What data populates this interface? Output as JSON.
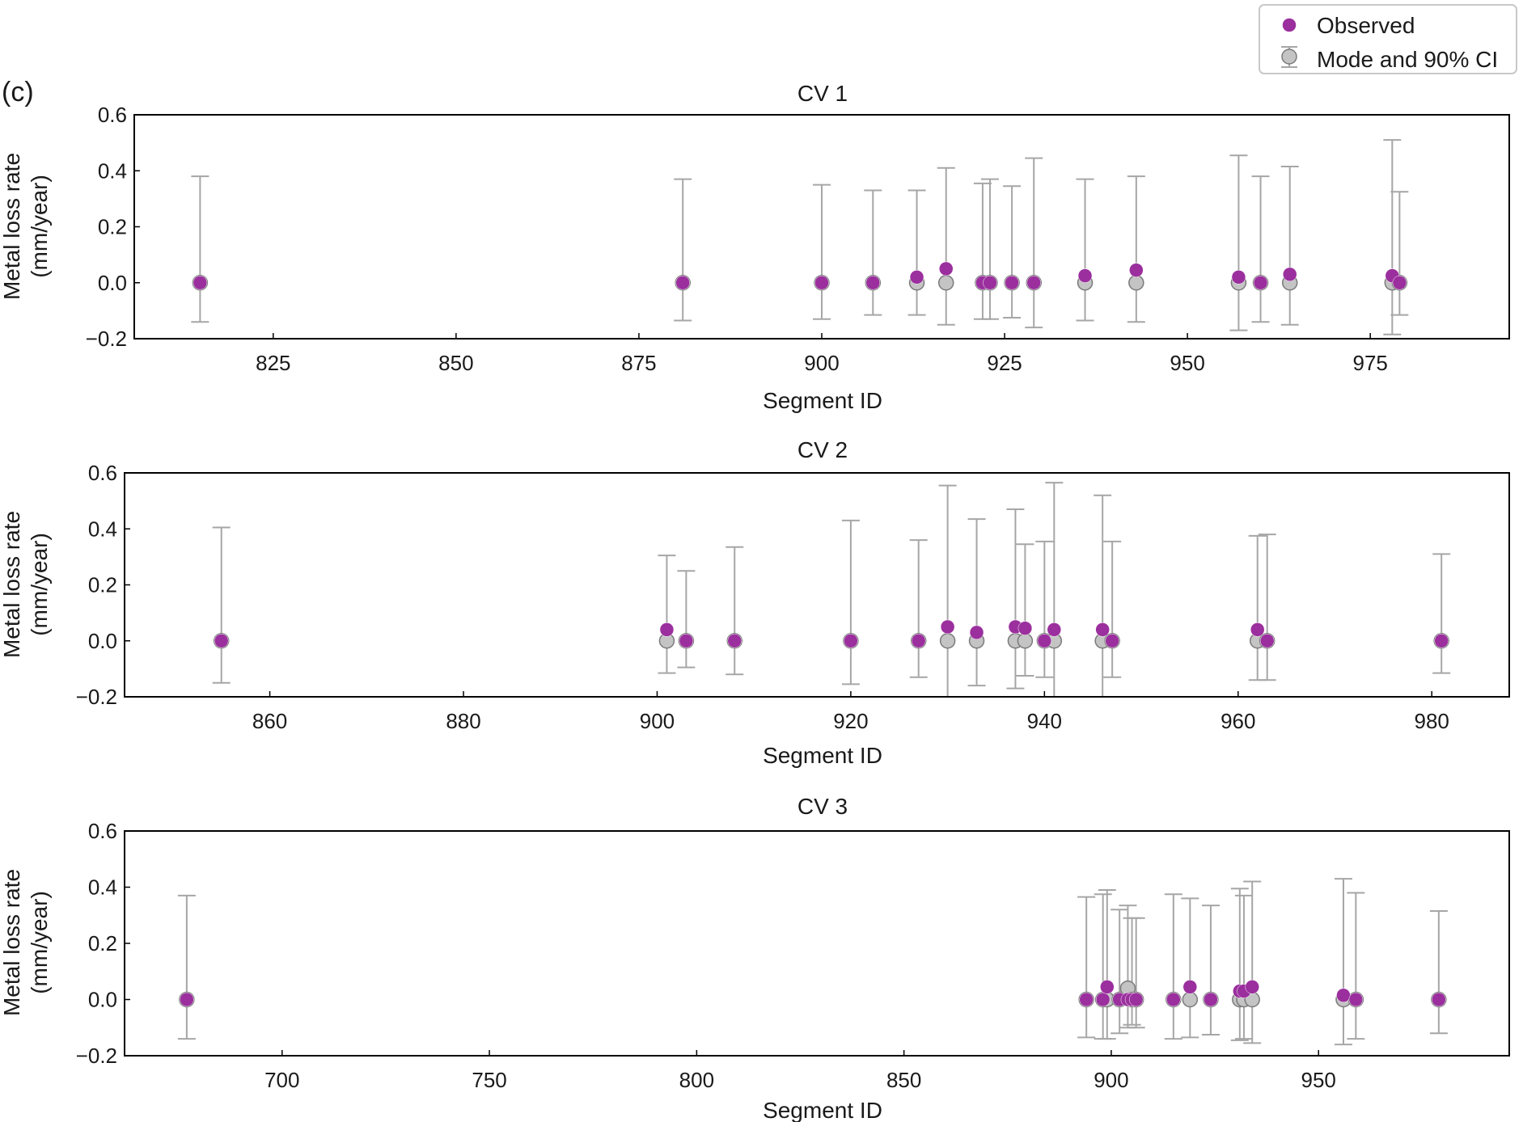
{
  "panel_label": "(c)",
  "legend": {
    "observed_label": "Observed",
    "mode_label": "Mode and 90% CI",
    "observed_color": "#9b2f9e",
    "mode_color": "#c4c4c4",
    "errorbar_color": "#a6a6a6"
  },
  "chart_data": [
    {
      "type": "scatter",
      "title": "CV 1",
      "xlabel": "Segment ID",
      "ylabel_line1": "Metal loss rate",
      "ylabel_line2": "(mm/year)",
      "xlim": [
        806,
        994
      ],
      "ylim": [
        -0.2,
        0.6
      ],
      "xticks": [
        825,
        850,
        875,
        900,
        925,
        950,
        975
      ],
      "yticks": [
        -0.2,
        0.0,
        0.2,
        0.4,
        0.6
      ],
      "ytick_labels": [
        "−0.2",
        "0.0",
        "0.2",
        "0.4",
        "0.6"
      ],
      "points": [
        {
          "x": 815,
          "mode": 0.0,
          "lo": -0.14,
          "hi": 0.38,
          "obs": 0.0
        },
        {
          "x": 881,
          "mode": 0.0,
          "lo": -0.135,
          "hi": 0.37,
          "obs": 0.0
        },
        {
          "x": 900,
          "mode": 0.0,
          "lo": -0.13,
          "hi": 0.35,
          "obs": 0.0
        },
        {
          "x": 907,
          "mode": 0.0,
          "lo": -0.115,
          "hi": 0.33,
          "obs": 0.0
        },
        {
          "x": 913,
          "mode": 0.0,
          "lo": -0.115,
          "hi": 0.33,
          "obs": 0.02
        },
        {
          "x": 917,
          "mode": 0.0,
          "lo": -0.15,
          "hi": 0.41,
          "obs": 0.05
        },
        {
          "x": 922,
          "mode": 0.0,
          "lo": -0.13,
          "hi": 0.355,
          "obs": 0.0
        },
        {
          "x": 923,
          "mode": 0.0,
          "lo": -0.13,
          "hi": 0.37,
          "obs": 0.0
        },
        {
          "x": 926,
          "mode": 0.0,
          "lo": -0.125,
          "hi": 0.345,
          "obs": 0.0
        },
        {
          "x": 929,
          "mode": 0.0,
          "lo": -0.16,
          "hi": 0.445,
          "obs": 0.0
        },
        {
          "x": 936,
          "mode": 0.0,
          "lo": -0.135,
          "hi": 0.37,
          "obs": 0.025
        },
        {
          "x": 943,
          "mode": 0.0,
          "lo": -0.14,
          "hi": 0.38,
          "obs": 0.045
        },
        {
          "x": 957,
          "mode": 0.0,
          "lo": -0.17,
          "hi": 0.455,
          "obs": 0.02
        },
        {
          "x": 960,
          "mode": 0.0,
          "lo": -0.14,
          "hi": 0.38,
          "obs": 0.0
        },
        {
          "x": 964,
          "mode": 0.0,
          "lo": -0.15,
          "hi": 0.415,
          "obs": 0.03
        },
        {
          "x": 978,
          "mode": 0.0,
          "lo": -0.185,
          "hi": 0.51,
          "obs": 0.025
        },
        {
          "x": 979,
          "mode": 0.0,
          "lo": -0.115,
          "hi": 0.325,
          "obs": 0.0
        }
      ]
    },
    {
      "type": "scatter",
      "title": "CV 2",
      "xlabel": "Segment ID",
      "ylabel_line1": "Metal loss rate",
      "ylabel_line2": "(mm/year)",
      "xlim": [
        845,
        988
      ],
      "ylim": [
        -0.2,
        0.6
      ],
      "xticks": [
        860,
        880,
        900,
        920,
        940,
        960,
        980
      ],
      "yticks": [
        -0.2,
        0.0,
        0.2,
        0.4,
        0.6
      ],
      "ytick_labels": [
        "−0.2",
        "0.0",
        "0.2",
        "0.4",
        "0.6"
      ],
      "points": [
        {
          "x": 855,
          "mode": 0.0,
          "lo": -0.15,
          "hi": 0.405,
          "obs": 0.0
        },
        {
          "x": 901,
          "mode": 0.0,
          "lo": -0.115,
          "hi": 0.305,
          "obs": 0.04
        },
        {
          "x": 903,
          "mode": 0.0,
          "lo": -0.095,
          "hi": 0.25,
          "obs": 0.0
        },
        {
          "x": 908,
          "mode": 0.0,
          "lo": -0.12,
          "hi": 0.335,
          "obs": 0.0
        },
        {
          "x": 920,
          "mode": 0.0,
          "lo": -0.155,
          "hi": 0.43,
          "obs": 0.0
        },
        {
          "x": 927,
          "mode": 0.0,
          "lo": -0.13,
          "hi": 0.36,
          "obs": 0.0
        },
        {
          "x": 930,
          "mode": 0.0,
          "lo": -0.2,
          "hi": 0.555,
          "obs": 0.05
        },
        {
          "x": 933,
          "mode": 0.0,
          "lo": -0.16,
          "hi": 0.435,
          "obs": 0.03
        },
        {
          "x": 937,
          "mode": 0.0,
          "lo": -0.17,
          "hi": 0.47,
          "obs": 0.05
        },
        {
          "x": 938,
          "mode": 0.0,
          "lo": -0.125,
          "hi": 0.345,
          "obs": 0.045
        },
        {
          "x": 940,
          "mode": 0.0,
          "lo": -0.13,
          "hi": 0.355,
          "obs": 0.0
        },
        {
          "x": 941,
          "mode": 0.0,
          "lo": -0.2,
          "hi": 0.565,
          "obs": 0.04
        },
        {
          "x": 946,
          "mode": 0.0,
          "lo": -0.2,
          "hi": 0.52,
          "obs": 0.04
        },
        {
          "x": 947,
          "mode": 0.0,
          "lo": -0.13,
          "hi": 0.355,
          "obs": 0.0
        },
        {
          "x": 962,
          "mode": 0.0,
          "lo": -0.14,
          "hi": 0.375,
          "obs": 0.04
        },
        {
          "x": 963,
          "mode": 0.0,
          "lo": -0.14,
          "hi": 0.38,
          "obs": 0.0
        },
        {
          "x": 981,
          "mode": 0.0,
          "lo": -0.115,
          "hi": 0.31,
          "obs": 0.0
        }
      ]
    },
    {
      "type": "scatter",
      "title": "CV 3",
      "xlabel": "Segment ID",
      "ylabel_line1": "Metal loss rate",
      "ylabel_line2": "(mm/year)",
      "xlim": [
        662,
        996
      ],
      "ylim": [
        -0.2,
        0.6
      ],
      "xticks": [
        700,
        750,
        800,
        850,
        900,
        950
      ],
      "yticks": [
        -0.2,
        0.0,
        0.2,
        0.4,
        0.6
      ],
      "ytick_labels": [
        "−0.2",
        "0.0",
        "0.2",
        "0.4",
        "0.6"
      ],
      "points": [
        {
          "x": 677,
          "mode": 0.0,
          "lo": -0.14,
          "hi": 0.37,
          "obs": 0.0
        },
        {
          "x": 894,
          "mode": 0.0,
          "lo": -0.135,
          "hi": 0.365,
          "obs": 0.0
        },
        {
          "x": 898,
          "mode": 0.0,
          "lo": -0.14,
          "hi": 0.375,
          "obs": 0.0
        },
        {
          "x": 899,
          "mode": 0.0,
          "lo": -0.14,
          "hi": 0.39,
          "obs": 0.045
        },
        {
          "x": 902,
          "mode": 0.0,
          "lo": -0.12,
          "hi": 0.32,
          "obs": 0.0
        },
        {
          "x": 904,
          "mode": 0.04,
          "lo": -0.1,
          "hi": 0.335,
          "obs": 0.0
        },
        {
          "x": 905,
          "mode": 0.0,
          "lo": -0.09,
          "hi": 0.29,
          "obs": 0.0
        },
        {
          "x": 906,
          "mode": 0.0,
          "lo": -0.1,
          "hi": 0.29,
          "obs": 0.0
        },
        {
          "x": 915,
          "mode": 0.0,
          "lo": -0.14,
          "hi": 0.375,
          "obs": 0.0
        },
        {
          "x": 919,
          "mode": 0.0,
          "lo": -0.135,
          "hi": 0.36,
          "obs": 0.045
        },
        {
          "x": 924,
          "mode": 0.0,
          "lo": -0.125,
          "hi": 0.335,
          "obs": 0.0
        },
        {
          "x": 931,
          "mode": 0.0,
          "lo": -0.145,
          "hi": 0.395,
          "obs": 0.03
        },
        {
          "x": 932,
          "mode": 0.0,
          "lo": -0.14,
          "hi": 0.37,
          "obs": 0.03
        },
        {
          "x": 934,
          "mode": 0.0,
          "lo": -0.155,
          "hi": 0.42,
          "obs": 0.045
        },
        {
          "x": 956,
          "mode": 0.0,
          "lo": -0.16,
          "hi": 0.43,
          "obs": 0.015
        },
        {
          "x": 959,
          "mode": 0.0,
          "lo": -0.14,
          "hi": 0.38,
          "obs": 0.0
        },
        {
          "x": 979,
          "mode": 0.0,
          "lo": -0.12,
          "hi": 0.315,
          "obs": 0.0
        }
      ]
    }
  ]
}
